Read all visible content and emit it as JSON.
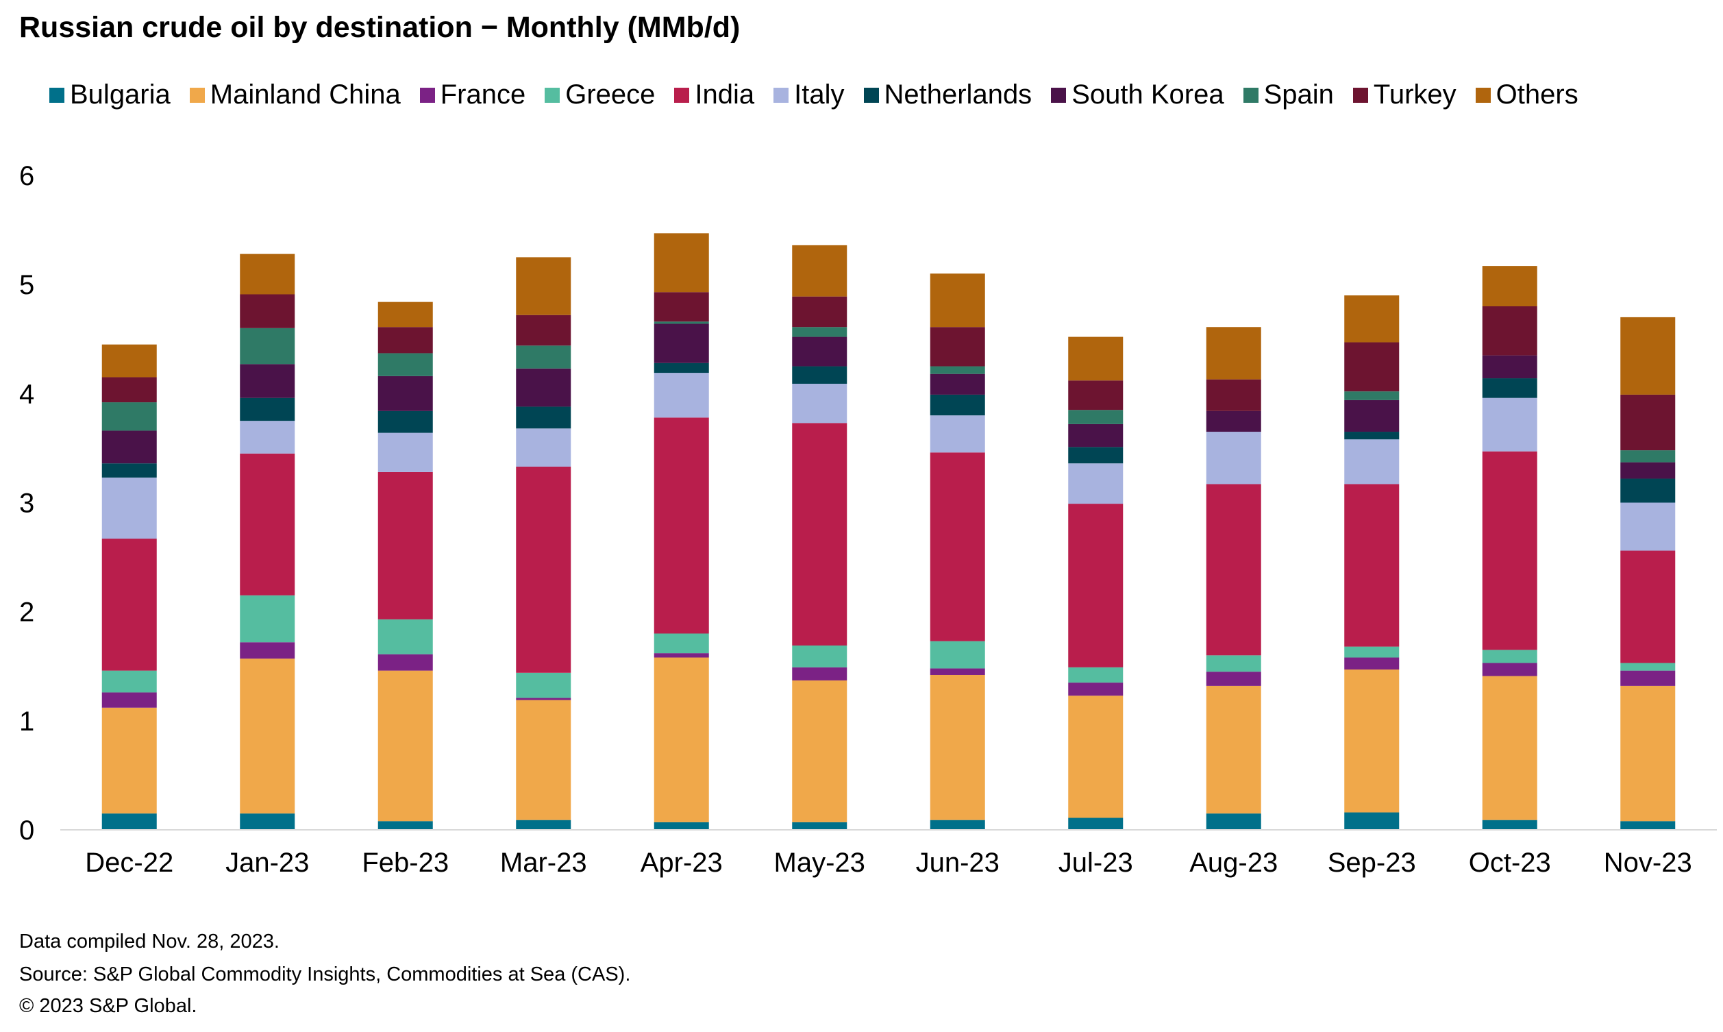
{
  "title": "Russian crude oil by destination − Monthly (MMb/d)",
  "colors": {
    "Bulgaria": "#00708a",
    "Mainland China": "#f0a84a",
    "France": "#7b2285",
    "Greece": "#55bda0",
    "India": "#b91e4c",
    "Italy": "#a8b3df",
    "Netherlands": "#004554",
    "South Korea": "#4a1249",
    "Spain": "#2f7a66",
    "Turkey": "#6d1430",
    "Others": "#b0650d",
    "axis": "#d9d9d9"
  },
  "chart_data": {
    "type": "bar",
    "stacked": true,
    "title": "Russian crude oil by destination − Monthly (MMb/d)",
    "xlabel": "",
    "ylabel": "",
    "ylim": [
      0,
      6
    ],
    "yticks": [
      "0",
      "1",
      "2",
      "3",
      "4",
      "5",
      "6"
    ],
    "categories": [
      "Dec-22",
      "Jan-23",
      "Feb-23",
      "Mar-23",
      "Apr-23",
      "May-23",
      "Jun-23",
      "Jul-23",
      "Aug-23",
      "Sep-23",
      "Oct-23",
      "Nov-23"
    ],
    "series": [
      {
        "name": "Bulgaria",
        "values": [
          0.15,
          0.15,
          0.08,
          0.09,
          0.07,
          0.07,
          0.09,
          0.11,
          0.15,
          0.16,
          0.09,
          0.08
        ]
      },
      {
        "name": "Mainland China",
        "values": [
          0.97,
          1.42,
          1.38,
          1.1,
          1.51,
          1.3,
          1.33,
          1.12,
          1.17,
          1.31,
          1.32,
          1.24
        ]
      },
      {
        "name": "France",
        "values": [
          0.14,
          0.15,
          0.15,
          0.02,
          0.04,
          0.12,
          0.06,
          0.12,
          0.13,
          0.11,
          0.12,
          0.14
        ]
      },
      {
        "name": "Greece",
        "values": [
          0.2,
          0.43,
          0.32,
          0.23,
          0.18,
          0.2,
          0.25,
          0.14,
          0.15,
          0.1,
          0.12,
          0.07
        ]
      },
      {
        "name": "India",
        "values": [
          1.21,
          1.3,
          1.35,
          1.89,
          1.98,
          2.04,
          1.73,
          1.5,
          1.57,
          1.49,
          1.82,
          1.03
        ]
      },
      {
        "name": "Italy",
        "values": [
          0.56,
          0.3,
          0.36,
          0.35,
          0.41,
          0.36,
          0.34,
          0.37,
          0.48,
          0.41,
          0.49,
          0.44
        ]
      },
      {
        "name": "Netherlands",
        "values": [
          0.13,
          0.21,
          0.2,
          0.2,
          0.09,
          0.16,
          0.19,
          0.15,
          0.0,
          0.07,
          0.18,
          0.22
        ]
      },
      {
        "name": "South Korea",
        "values": [
          0.3,
          0.31,
          0.32,
          0.35,
          0.36,
          0.27,
          0.19,
          0.21,
          0.19,
          0.29,
          0.21,
          0.15
        ]
      },
      {
        "name": "Spain",
        "values": [
          0.26,
          0.33,
          0.21,
          0.21,
          0.02,
          0.09,
          0.07,
          0.13,
          0.0,
          0.08,
          0.0,
          0.11
        ]
      },
      {
        "name": "Turkey",
        "values": [
          0.23,
          0.31,
          0.24,
          0.28,
          0.27,
          0.28,
          0.36,
          0.27,
          0.29,
          0.45,
          0.45,
          0.51
        ]
      },
      {
        "name": "Others",
        "values": [
          0.3,
          0.37,
          0.23,
          0.53,
          0.54,
          0.47,
          0.49,
          0.4,
          0.48,
          0.43,
          0.37,
          0.71
        ]
      }
    ]
  },
  "footer": {
    "line1": "Data compiled Nov. 28, 2023.",
    "line2": "Source: S&P Global Commodity Insights, Commodities at Sea (CAS).",
    "line3": "© 2023 S&P Global."
  }
}
